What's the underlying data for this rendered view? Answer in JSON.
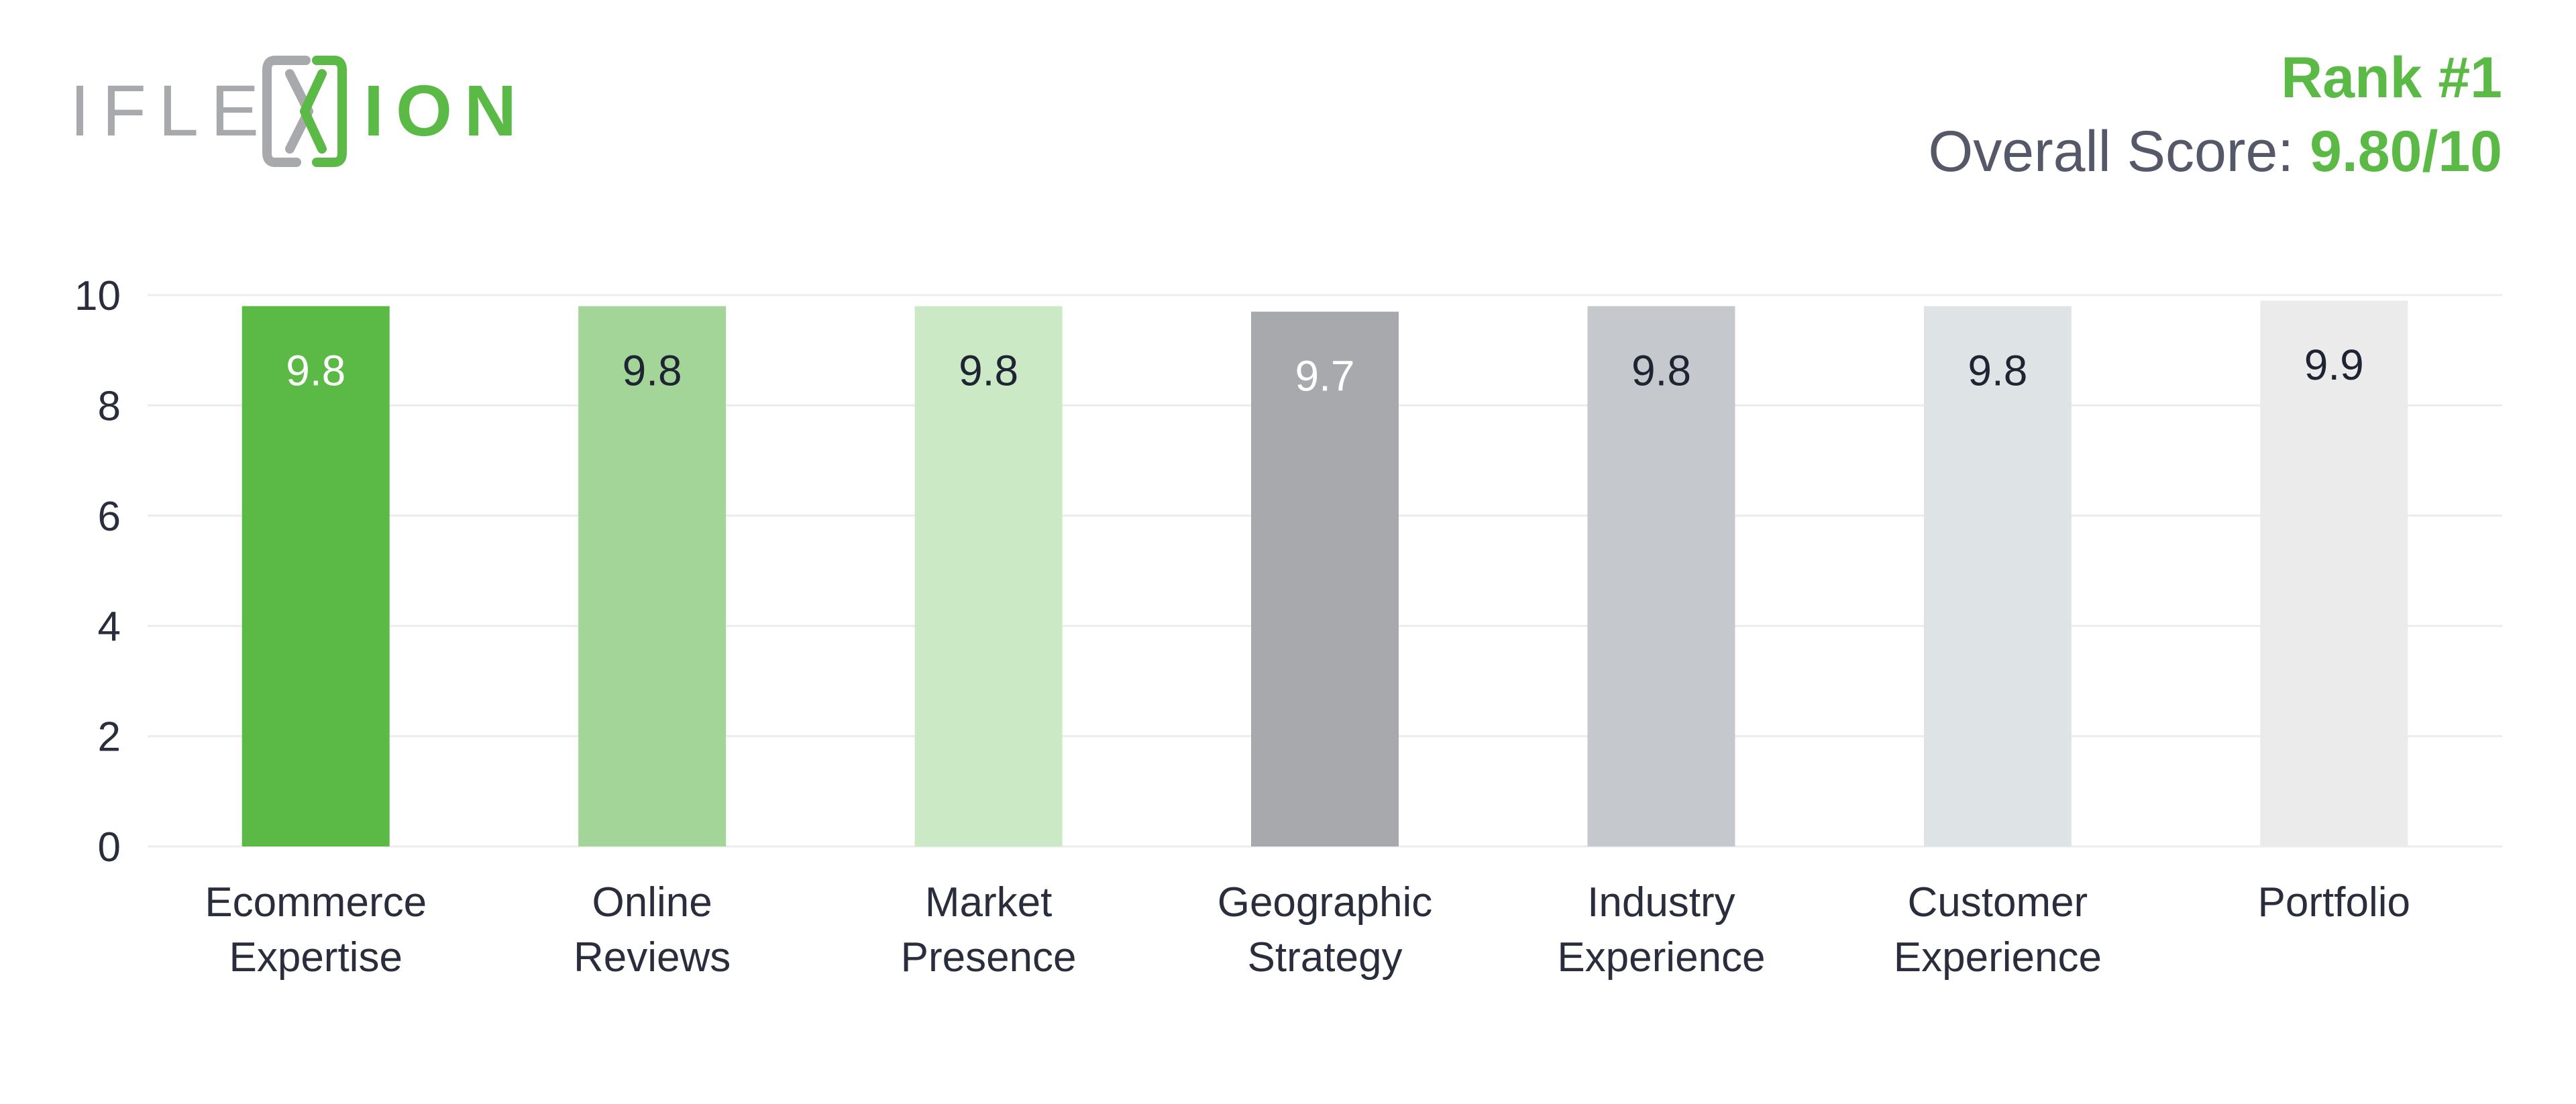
{
  "brand": {
    "logo_text": "IFLEXION",
    "colors": {
      "green": "#5bb946",
      "gray": "#a8a9ad"
    }
  },
  "header": {
    "rank": "Rank #1",
    "overall_label": "Overall Score: ",
    "overall_value": "9.80/10"
  },
  "chart_data": {
    "type": "bar",
    "categories": [
      [
        "Ecommerce",
        "Expertise"
      ],
      [
        "Online",
        "Reviews"
      ],
      [
        "Market",
        "Presence"
      ],
      [
        "Geographic",
        "Strategy"
      ],
      [
        "Industry",
        "Experience"
      ],
      [
        "Customer",
        "Experience"
      ],
      [
        "Portfolio"
      ]
    ],
    "values": [
      9.8,
      9.8,
      9.8,
      9.7,
      9.8,
      9.8,
      9.9
    ],
    "value_labels": [
      "9.8",
      "9.8",
      "9.8",
      "9.7",
      "9.8",
      "9.8",
      "9.9"
    ],
    "bar_colors": [
      "#5bb946",
      "#a3d599",
      "#cbe9c5",
      "#a8a9ad",
      "#c5c8cd",
      "#dee3e6",
      "#ebebeb"
    ],
    "label_colors": [
      "#ffffff",
      "#1f2433",
      "#1f2433",
      "#ffffff",
      "#1f2433",
      "#1f2433",
      "#1f2433"
    ],
    "yticks": [
      "0",
      "2",
      "4",
      "6",
      "8",
      "10"
    ],
    "ylim": [
      0,
      10
    ],
    "grid": true,
    "gridline_color": "#ececec"
  }
}
